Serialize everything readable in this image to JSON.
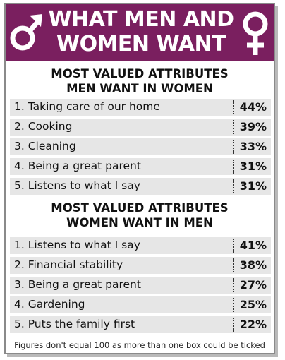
{
  "header": {
    "title_line1": "WHAT MEN AND",
    "title_line2": "WOMEN WANT",
    "left_icon": "male-symbol",
    "right_icon": "female-symbol",
    "header_color": "#7a1f5f"
  },
  "section_men": {
    "title_line1": "MOST VALUED ATTRIBUTES",
    "title_line2": "MEN WANT IN WOMEN",
    "items": [
      {
        "label": "1.  Taking care of our home",
        "value": "44%"
      },
      {
        "label": "2. Cooking",
        "value": "39%"
      },
      {
        "label": "3. Cleaning",
        "value": "33%"
      },
      {
        "label": "4. Being a great parent",
        "value": "31%"
      },
      {
        "label": "5. Listens to what I say",
        "value": "31%"
      }
    ]
  },
  "section_women": {
    "title_line1": "MOST VALUED ATTRIBUTES",
    "title_line2": "WOMEN WANT IN MEN",
    "items": [
      {
        "label": "1.  Listens to what I say",
        "value": "41%"
      },
      {
        "label": "2. Financial stability",
        "value": "38%"
      },
      {
        "label": "3. Being a great parent",
        "value": "27%"
      },
      {
        "label": "4. Gardening",
        "value": "25%"
      },
      {
        "label": "5. Puts the family first",
        "value": "22%"
      }
    ]
  },
  "footnote": "Figures don't equal 100 as more than one box could be ticked"
}
